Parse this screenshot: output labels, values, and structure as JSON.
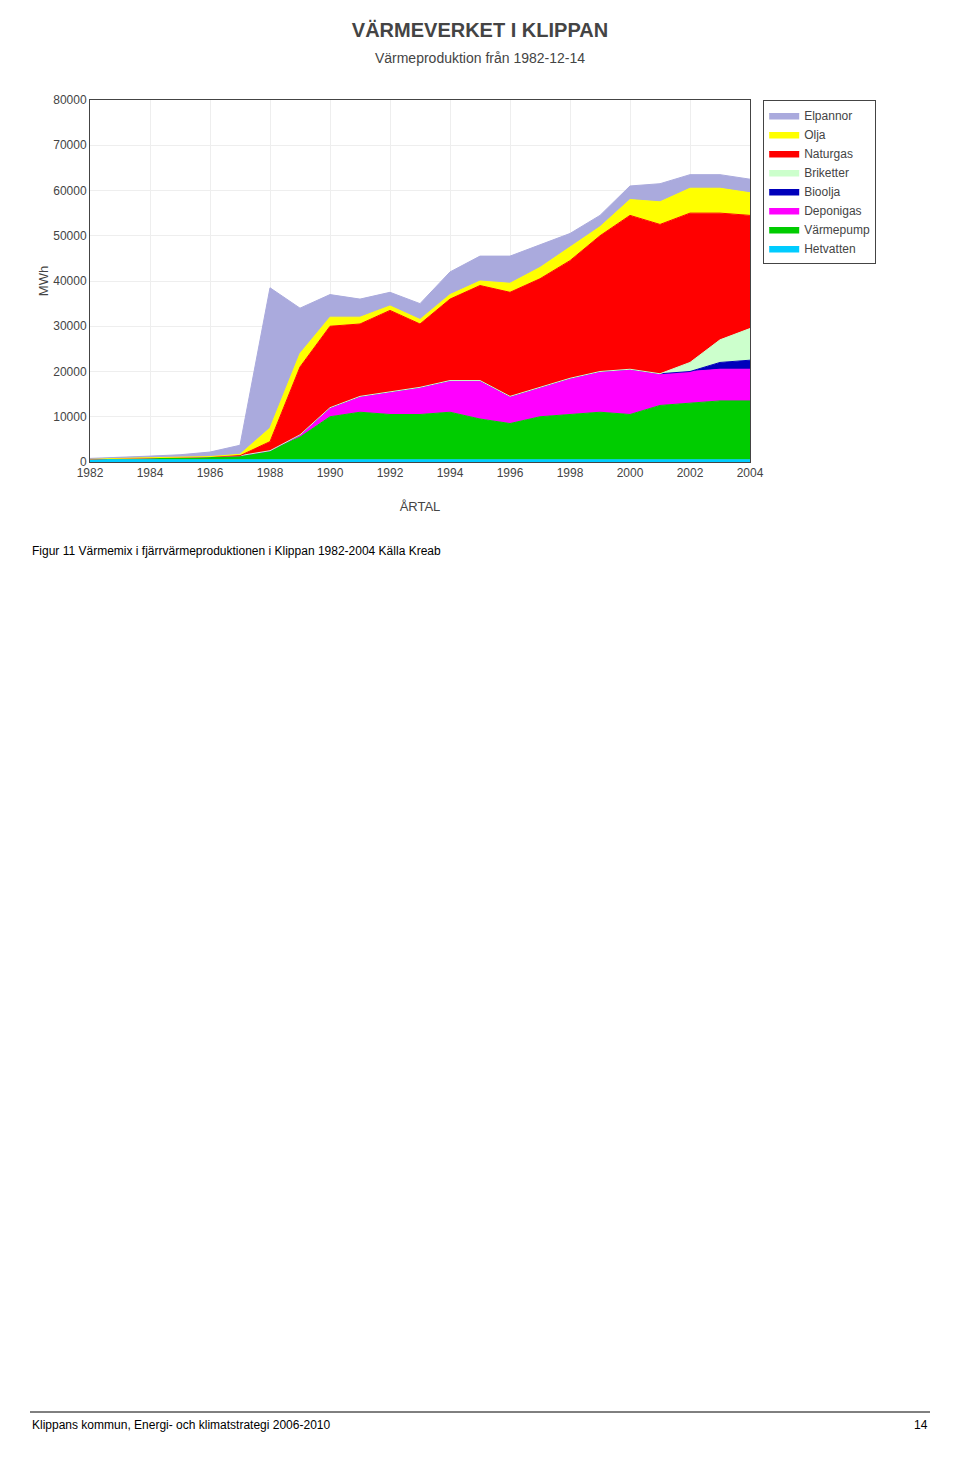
{
  "chart_data": {
    "type": "area",
    "stacked": true,
    "title": "VÄRMEVERKET I KLIPPAN",
    "subtitle": "Värmeproduktion från 1982-12-14",
    "xlabel": "ÅRTAL",
    "ylabel": "MWh",
    "x": [
      1982,
      1983,
      1984,
      1985,
      1986,
      1987,
      1988,
      1989,
      1990,
      1991,
      1992,
      1993,
      1994,
      1995,
      1996,
      1997,
      1998,
      1999,
      2000,
      2001,
      2002,
      2003,
      2004
    ],
    "xlim": [
      1982,
      2004
    ],
    "xticks": [
      1982,
      1984,
      1986,
      1988,
      1990,
      1992,
      1994,
      1996,
      1998,
      2000,
      2002,
      2004
    ],
    "ylim": [
      0,
      80000
    ],
    "yticks": [
      0,
      10000,
      20000,
      30000,
      40000,
      50000,
      60000,
      70000,
      80000
    ],
    "grid": true,
    "legend": "right",
    "series": [
      {
        "name": "Hetvatten",
        "color": "#00CCFF",
        "values": [
          500,
          500,
          500,
          500,
          500,
          500,
          500,
          500,
          500,
          500,
          500,
          500,
          500,
          500,
          500,
          500,
          500,
          500,
          500,
          500,
          500,
          500,
          500
        ]
      },
      {
        "name": "Värmepump",
        "color": "#00CC00",
        "values": [
          200,
          300,
          400,
          500,
          700,
          900,
          2000,
          5000,
          9500,
          10500,
          10000,
          10000,
          10500,
          9000,
          8000,
          9500,
          10000,
          10500,
          10000,
          12000,
          12500,
          13000,
          13000
        ]
      },
      {
        "name": "Deponigas",
        "color": "#FF00FF",
        "values": [
          0,
          0,
          0,
          0,
          0,
          0,
          0,
          500,
          2000,
          3500,
          5000,
          6000,
          7000,
          8500,
          6000,
          6500,
          8000,
          9000,
          10000,
          7000,
          7000,
          7000,
          7000
        ]
      },
      {
        "name": "Bioolja",
        "color": "#0000BB",
        "values": [
          0,
          0,
          0,
          0,
          0,
          0,
          0,
          0,
          0,
          0,
          0,
          0,
          0,
          0,
          0,
          0,
          0,
          0,
          0,
          0,
          0,
          1500,
          2000
        ]
      },
      {
        "name": "Briketter",
        "color": "#CCFFCC",
        "values": [
          0,
          0,
          0,
          0,
          0,
          0,
          0,
          0,
          0,
          0,
          0,
          0,
          0,
          0,
          0,
          0,
          0,
          0,
          0,
          0,
          2000,
          5000,
          7000
        ]
      },
      {
        "name": "Naturgas",
        "color": "#FF0000",
        "values": [
          0,
          0,
          0,
          0,
          0,
          0,
          2000,
          15000,
          18000,
          16000,
          18000,
          14000,
          18000,
          21000,
          23000,
          24000,
          26000,
          30000,
          34000,
          33000,
          33000,
          28000,
          25000
        ]
      },
      {
        "name": "Olja",
        "color": "#FFFF00",
        "values": [
          0,
          0,
          0,
          0,
          0,
          300,
          3000,
          3000,
          2000,
          1500,
          1000,
          1000,
          1000,
          1000,
          2000,
          2500,
          3000,
          2000,
          3500,
          5000,
          5500,
          5500,
          5000
        ]
      },
      {
        "name": "Elpannor",
        "color": "#AAAADD",
        "values": [
          100,
          200,
          400,
          600,
          1000,
          2000,
          31000,
          10000,
          5000,
          4000,
          3000,
          3500,
          5000,
          5500,
          6000,
          5000,
          3000,
          2500,
          3000,
          4000,
          3000,
          3000,
          3000
        ]
      }
    ],
    "annotations": [
      "Figur 11 Värmemix i fjärrvärmeproduktionen i Klippan 1982-2004 Källa Kreab",
      "Klippans kommun, Energi- och klimatstrategi 2006-2010",
      "14"
    ]
  }
}
